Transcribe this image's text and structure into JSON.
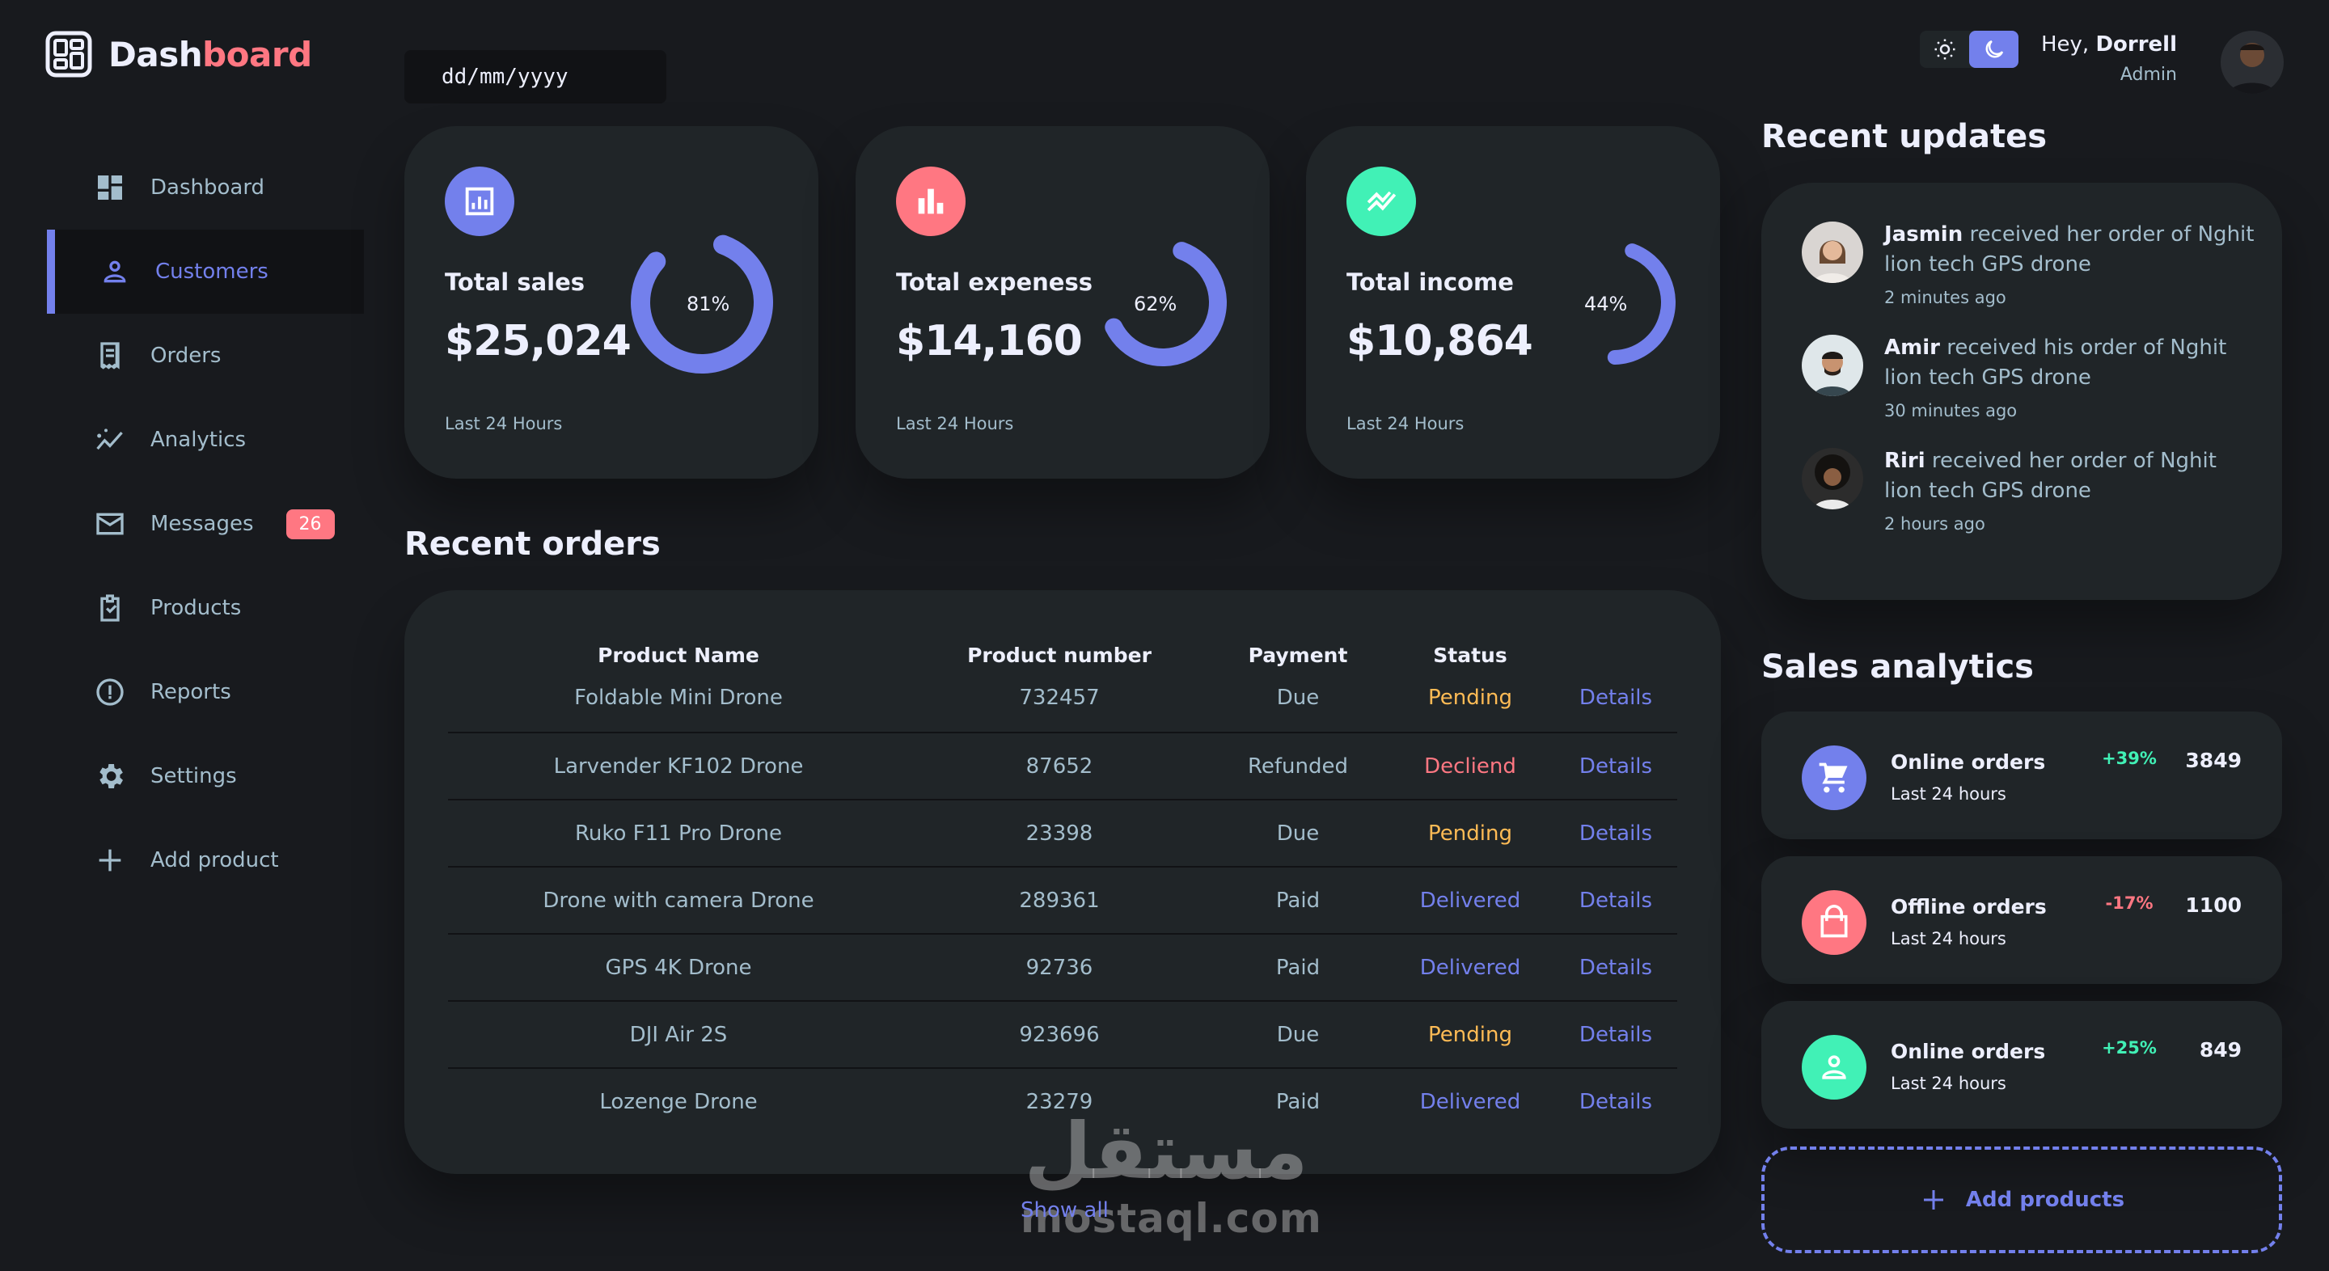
{
  "brand": {
    "prefix": "Dash",
    "accent": "board"
  },
  "sidebar": {
    "items": [
      {
        "label": "Dashboard",
        "icon": "grid-icon"
      },
      {
        "label": "Customers",
        "icon": "person-icon",
        "active": true
      },
      {
        "label": "Orders",
        "icon": "receipt-icon"
      },
      {
        "label": "Analytics",
        "icon": "trending-icon"
      },
      {
        "label": "Messages",
        "icon": "mail-icon",
        "badge": "26"
      },
      {
        "label": "Products",
        "icon": "clipboard-icon"
      },
      {
        "label": "Reports",
        "icon": "alert-icon"
      },
      {
        "label": "Settings",
        "icon": "gear-icon"
      },
      {
        "label": "Add product",
        "icon": "plus-icon"
      }
    ]
  },
  "date_input": {
    "placeholder": "dd/mm/yyyy"
  },
  "stats": [
    {
      "title": "Total sales",
      "amount": "$25,024",
      "subtitle": "Last 24 Hours",
      "percent_label": "81%",
      "percent": 81,
      "color": "#7380ec"
    },
    {
      "title": "Total expeness",
      "amount": "$14,160",
      "subtitle": "Last 24 Hours",
      "percent_label": "62%",
      "percent": 62,
      "color": "#ff7782"
    },
    {
      "title": "Total income",
      "amount": "$10,864",
      "subtitle": "Last 24 Hours",
      "percent_label": "44%",
      "percent": 44,
      "color": "#41f1b6"
    }
  ],
  "recent_orders": {
    "title": "Recent orders",
    "columns": [
      "Product Name",
      "Product number",
      "Payment",
      "Status",
      ""
    ],
    "rows": [
      {
        "name": "Foldable Mini Drone",
        "number": "732457",
        "payment": "Due",
        "status": "Pending",
        "action": "Details"
      },
      {
        "name": "Larvender KF102 Drone",
        "number": "87652",
        "payment": "Refunded",
        "status": "Decliend",
        "action": "Details"
      },
      {
        "name": "Ruko F11 Pro Drone",
        "number": "23398",
        "payment": "Due",
        "status": "Pending",
        "action": "Details"
      },
      {
        "name": "Drone with camera Drone",
        "number": "289361",
        "payment": "Paid",
        "status": "Delivered",
        "action": "Details"
      },
      {
        "name": "GPS 4K Drone",
        "number": "92736",
        "payment": "Paid",
        "status": "Delivered",
        "action": "Details"
      },
      {
        "name": "DJI Air 2S",
        "number": "923696",
        "payment": "Due",
        "status": "Pending",
        "action": "Details"
      },
      {
        "name": "Lozenge Drone",
        "number": "23279",
        "payment": "Paid",
        "status": "Delivered",
        "action": "Details"
      }
    ],
    "show_all": "Show all"
  },
  "watermark": {
    "arabic": "مستقل",
    "latin": "mostaql.com"
  },
  "profile": {
    "greeting": "Hey, ",
    "name": "Dorrell",
    "role": "Admin"
  },
  "recent_updates": {
    "title": "Recent updates",
    "items": [
      {
        "name": "Jasmin",
        "text": " received her order of Nghit lion tech GPS drone",
        "time": "2 minutes ago"
      },
      {
        "name": "Amir",
        "text": " received his order of Nghit lion tech GPS drone",
        "time": "30 minutes ago"
      },
      {
        "name": "Riri",
        "text": " received her order of Nghit lion tech GPS drone",
        "time": "2 hours ago"
      }
    ]
  },
  "sales_analytics": {
    "title": "Sales analytics",
    "items": [
      {
        "name": "Online orders",
        "subtitle": "Last 24 hours",
        "change": "+39%",
        "value": "3849",
        "icon": "cart-icon",
        "color": "#7380ec"
      },
      {
        "name": "Offline orders",
        "subtitle": "Last 24 hours",
        "change": "-17%",
        "value": "1100",
        "icon": "bag-icon",
        "color": "#ff7782"
      },
      {
        "name": "Online orders",
        "subtitle": "Last 24 hours",
        "change": "+25%",
        "value": "849",
        "icon": "person-icon",
        "color": "#41f1b6"
      }
    ],
    "add_label": "Add products"
  },
  "colors": {
    "primary": "#7380ec",
    "danger": "#ff7782",
    "success": "#41f1b6",
    "warning": "#ffbb55",
    "background": "#181a1e",
    "card": "#202528"
  }
}
